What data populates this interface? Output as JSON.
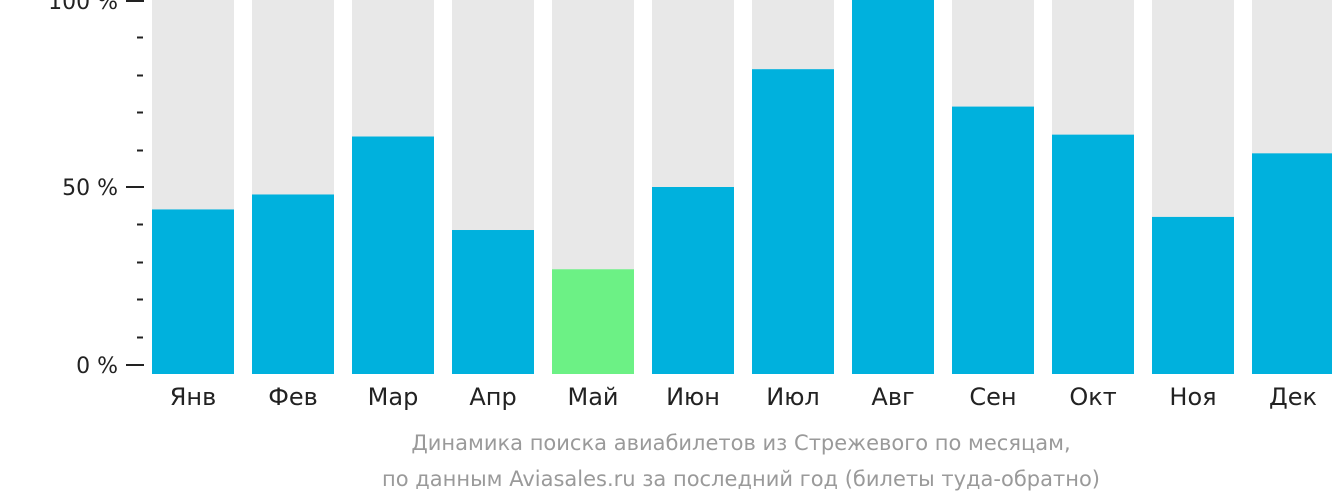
{
  "chart_data": {
    "type": "bar",
    "categories": [
      "Янв",
      "Фев",
      "Мар",
      "Апр",
      "Май",
      "Июн",
      "Июл",
      "Авг",
      "Сен",
      "Окт",
      "Ноя",
      "Дек"
    ],
    "values": [
      44,
      48,
      63.5,
      38.5,
      28,
      50,
      81.5,
      100,
      71.5,
      64,
      42,
      59
    ],
    "highlight_index": 4,
    "ylim": [
      0,
      100
    ],
    "yticks": [
      {
        "value": 100,
        "label": "100 %"
      },
      {
        "value": 50,
        "label": "50 %"
      },
      {
        "value": 0,
        "label": "0 %"
      }
    ],
    "minor_tick_step": 10,
    "colors": {
      "bar": "#00b1dd",
      "highlight": "#6cf185",
      "background": "#e8e8e8",
      "axis": "#222222"
    },
    "caption": [
      "Динамика поиска авиабилетов из Стрежевого по месяцам,",
      "по данным Aviasales.ru за последний год (билеты туда-обратно)"
    ]
  }
}
